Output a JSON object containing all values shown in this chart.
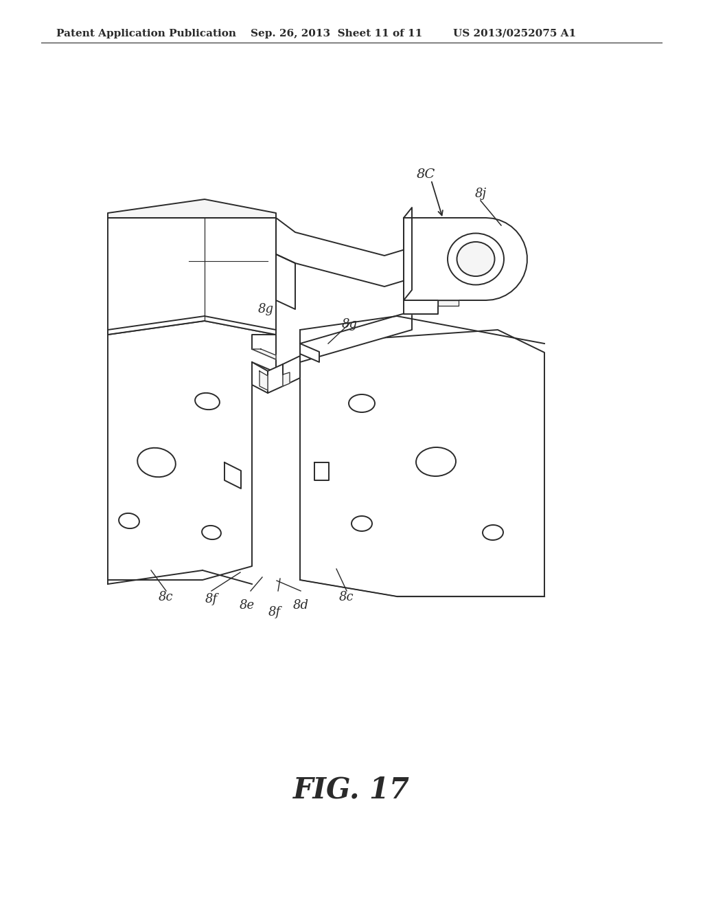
{
  "bg_color": "#ffffff",
  "lc": "#2a2a2a",
  "header_left": "Patent Application Publication",
  "header_mid": "Sep. 26, 2013  Sheet 11 of 11",
  "header_right": "US 2013/0252075 A1",
  "fig_caption": "FIG. 17",
  "label_8C": "8C",
  "label_8j": "8j",
  "label_8g_L": "8g",
  "label_8g_R": "8g",
  "label_8c_L": "8c",
  "label_8f_L": "8f",
  "label_8e": "8e",
  "label_8f_R": "8f",
  "label_8d": "8d",
  "label_8c_R": "8c",
  "header_fontsize": 11,
  "label_fontsize": 13,
  "caption_fontsize": 30
}
